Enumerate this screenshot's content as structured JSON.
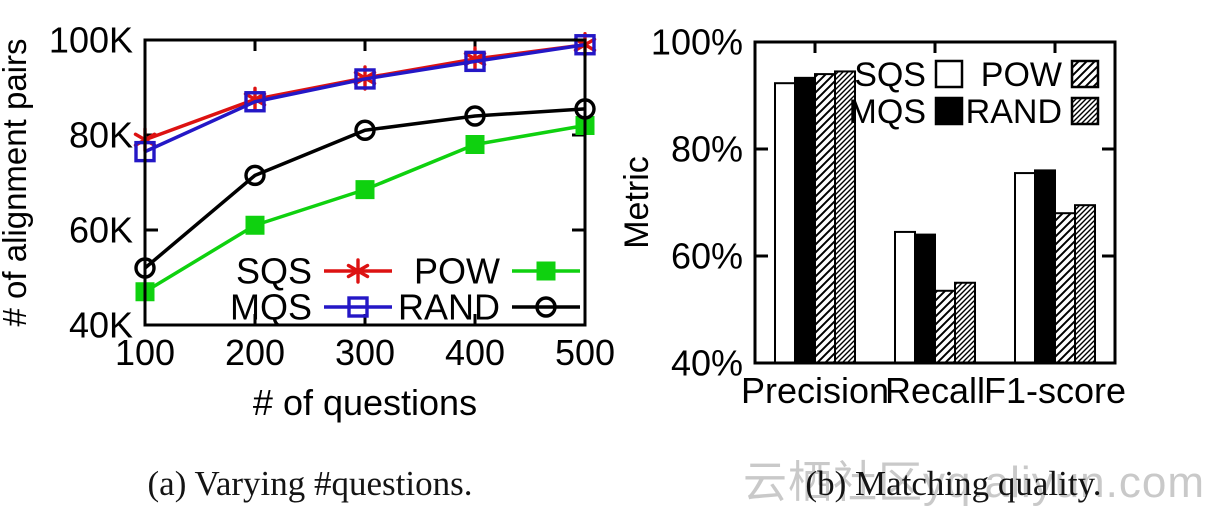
{
  "captions": {
    "a": "(a) Varying #questions.",
    "b": "(b) Matching quality."
  },
  "watermark": {
    "text": "云栖社区yq.aliyun.com",
    "color": "#c9c9c9"
  },
  "colors": {
    "sqs": "#dd1212",
    "mqs": "#2417c6",
    "pow": "#0fd10f",
    "rand": "#000000"
  },
  "chart_data": [
    {
      "id": "questions-line-chart",
      "type": "line",
      "title": "",
      "xlabel": "# of questions",
      "ylabel": "# of alignment pairs",
      "x": [
        100,
        200,
        300,
        400,
        500
      ],
      "xtick_labels": [
        "100",
        "200",
        "300",
        "400",
        "500"
      ],
      "xlim": [
        100,
        500
      ],
      "ylim": [
        40,
        100
      ],
      "yticks": [
        {
          "v": 40,
          "label": "40K"
        },
        {
          "v": 60,
          "label": "60K"
        },
        {
          "v": 80,
          "label": "80K"
        },
        {
          "v": 100,
          "label": "100K"
        }
      ],
      "grid": false,
      "legend_position": "inside-bottom",
      "series": [
        {
          "name": "SQS",
          "color": "#dd1212",
          "marker": "asterisk",
          "values": [
            79,
            87.5,
            92,
            96,
            99
          ]
        },
        {
          "name": "MQS",
          "color": "#2417c6",
          "marker": "open-square",
          "values": [
            76.5,
            87,
            91.8,
            95.5,
            99
          ]
        },
        {
          "name": "POW",
          "color": "#0fd10f",
          "marker": "filled-square",
          "values": [
            47,
            61,
            68.5,
            78,
            82
          ]
        },
        {
          "name": "RAND",
          "color": "#000000",
          "marker": "open-circle",
          "values": [
            52,
            71.5,
            81,
            84,
            85.5
          ]
        }
      ]
    },
    {
      "id": "matching-quality-bar-chart",
      "type": "bar",
      "title": "",
      "xlabel": "",
      "ylabel": "Metric",
      "categories": [
        "Precision",
        "Recall",
        "F1-score"
      ],
      "ylim": [
        40,
        100
      ],
      "yticks": [
        {
          "v": 40,
          "label": "40%"
        },
        {
          "v": 60,
          "label": "60%"
        },
        {
          "v": 80,
          "label": "80%"
        },
        {
          "v": 100,
          "label": "100%"
        }
      ],
      "grid": false,
      "legend_position": "inside-top-right",
      "series": [
        {
          "name": "SQS",
          "fill": "white",
          "values": [
            92.3,
            64.5,
            75.5
          ]
        },
        {
          "name": "MQS",
          "fill": "black",
          "values": [
            93.3,
            64,
            76
          ]
        },
        {
          "name": "POW",
          "fill": "hatch",
          "values": [
            94,
            53.5,
            68
          ]
        },
        {
          "name": "RAND",
          "fill": "hatch-dense",
          "values": [
            94.5,
            55,
            69.5
          ]
        }
      ]
    }
  ]
}
